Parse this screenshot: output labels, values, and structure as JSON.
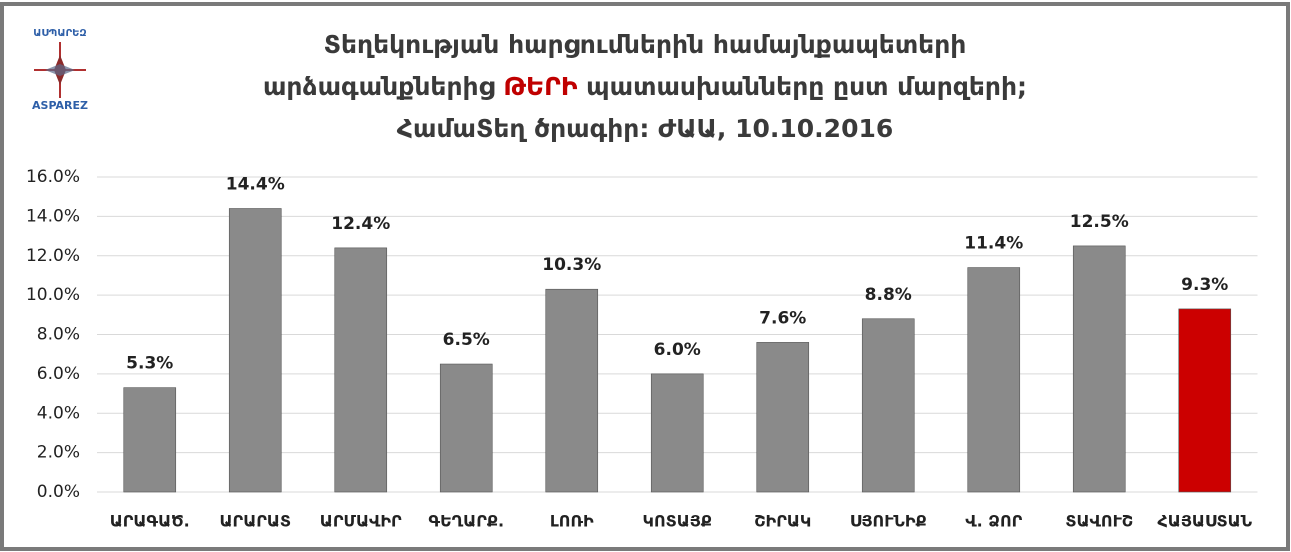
{
  "logo": {
    "text_hy": "ԱՍՊԱՐԵԶ",
    "text_en": "ASPAREZ"
  },
  "chart_data": {
    "type": "bar",
    "title": [
      [
        "Տեղեկության հարցումներին համայնքապետերի"
      ],
      [
        "արձագանքներից ",
        "ԹԵՐԻ",
        " պատասխանները ըստ մարզերի;"
      ],
      [
        "ՀամաՏեղ ծրագիր: ԺԱԱ, 10.10.2016"
      ]
    ],
    "title_highlight_color": "#c00000",
    "categories": [
      "ԱՐԱԳԱԾ.",
      "ԱՐԱՐԱՏ",
      "ԱՐՄԱՎԻՐ",
      "ԳԵՂԱՐՔ.",
      "ԼՈՌԻ",
      "ԿՈՏԱՅՔ",
      "ՇԻՐԱԿ",
      "ՍՅՈՒՆԻՔ",
      "Վ. ՁՈՐ",
      "ՏԱՎՈՒՇ",
      "ՀԱՅԱՍՏԱՆ"
    ],
    "values": [
      5.3,
      14.4,
      12.4,
      6.5,
      10.3,
      6.0,
      7.6,
      8.8,
      11.4,
      12.5,
      9.3
    ],
    "value_labels": [
      "5.3%",
      "14.4%",
      "12.4%",
      "6.5%",
      "10.3%",
      "6.0%",
      "7.6%",
      "8.8%",
      "11.4%",
      "12.5%",
      "9.3%"
    ],
    "colors": [
      "#8a8a8a",
      "#8a8a8a",
      "#8a8a8a",
      "#8a8a8a",
      "#8a8a8a",
      "#8a8a8a",
      "#8a8a8a",
      "#8a8a8a",
      "#8a8a8a",
      "#8a8a8a",
      "#cc0000"
    ],
    "ylim": [
      0,
      16
    ],
    "yticks": [
      {
        "value": 0,
        "label": "0.0%"
      },
      {
        "value": 2,
        "label": "2.0%"
      },
      {
        "value": 4,
        "label": "4.0%"
      },
      {
        "value": 6,
        "label": "6.0%"
      },
      {
        "value": 8,
        "label": "8.0%"
      },
      {
        "value": 10,
        "label": "10.0%"
      },
      {
        "value": 12,
        "label": "12.0%"
      },
      {
        "value": 14,
        "label": "14.0%"
      },
      {
        "value": 16,
        "label": "16.0%"
      }
    ],
    "grid": true
  }
}
